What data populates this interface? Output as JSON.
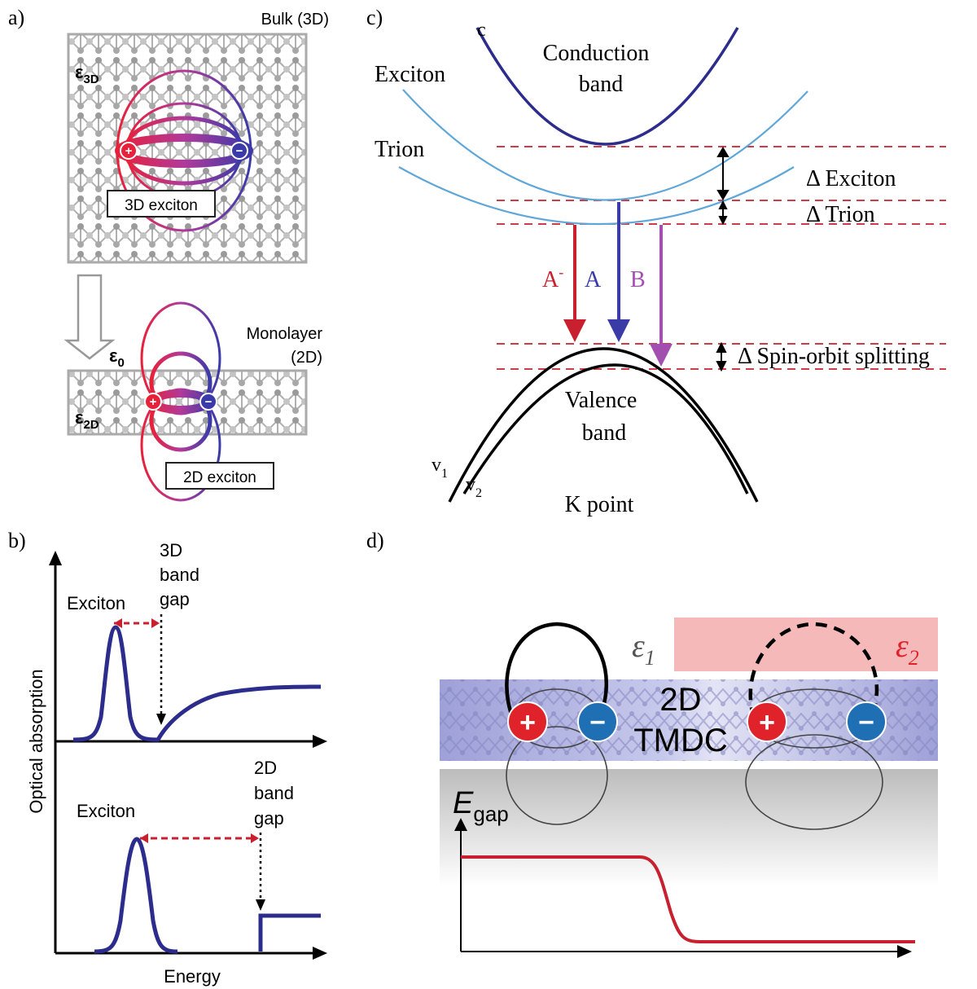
{
  "panel_a": {
    "label": "a)",
    "bulk_title": "Bulk (3D)",
    "eps_3d": "ε",
    "eps_3d_sub": "3D",
    "exciton_3d_label": "3D exciton",
    "eps_0": "ε",
    "eps_0_sub": "0",
    "monolayer_label_1": "Monolayer",
    "monolayer_label_2": "(2D)",
    "eps_2d": "ε",
    "eps_2d_sub": "2D",
    "exciton_2d_label": "2D exciton",
    "plus_sign": "+",
    "minus_sign": "−"
  },
  "panel_b": {
    "label": "b)",
    "ylabel": "Optical absorption",
    "xlabel": "Energy",
    "top_exciton": "Exciton",
    "top_gap_1": "3D",
    "top_gap_2": "band",
    "top_gap_3": "gap",
    "bottom_exciton": "Exciton",
    "bottom_gap_1": "2D",
    "bottom_gap_2": "band",
    "bottom_gap_3": "gap"
  },
  "panel_c": {
    "label": "c)",
    "c_label": "c",
    "conduction_1": "Conduction",
    "conduction_2": "band",
    "exciton": "Exciton",
    "trion": "Trion",
    "delta_exciton": "Δ Exciton",
    "delta_trion": "Δ Trion",
    "a_minus": "A",
    "a_minus_sup": "-",
    "a": "A",
    "b": "B",
    "spin_orbit": "Δ Spin-orbit splitting",
    "valence_1": "Valence",
    "valence_2": "band",
    "v1": "v",
    "v1_sub": "1",
    "v2": "v",
    "v2_sub": "2",
    "k_point": "K point",
    "colors": {
      "red": "#c8202e",
      "blue": "#3a3ba6",
      "purple": "#a24fb0",
      "light_blue": "#5fa7d8",
      "dark_blue": "#2c2c8c"
    }
  },
  "panel_d": {
    "label": "d)",
    "eps_1": "ε",
    "eps_1_sub": "1",
    "eps_2": "ε",
    "eps_2_sub": "2",
    "tmdc_1": "2D",
    "tmdc_2": "TMDC",
    "egap": "E",
    "egap_sub": "gap",
    "plus_sign": "+",
    "minus_sign": "−"
  }
}
